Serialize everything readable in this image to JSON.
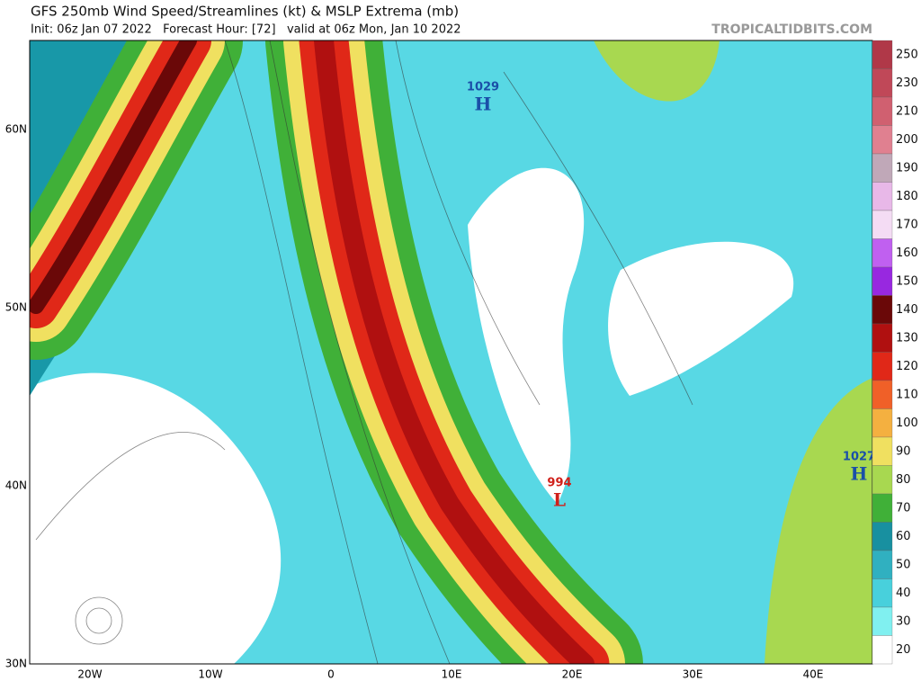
{
  "header": {
    "title": "GFS 250mb Wind Speed/Streamlines (kt) & MSLP Extrema (mb)",
    "subtitle": "Init: 06z Jan 07 2022   Forecast Hour: [72]   valid at 06z Mon, Jan 10 2022",
    "credit": "TROPICALTIDBITS.COM"
  },
  "map": {
    "lat_labels": [
      "60N",
      "50N",
      "40N",
      "30N"
    ],
    "lon_labels": [
      "20W",
      "10W",
      "0",
      "10E",
      "20E",
      "30E",
      "40E"
    ],
    "pressure_centers": [
      {
        "value": "1029",
        "symbol": "H",
        "color": "#1a4fa8"
      },
      {
        "value": "994",
        "symbol": "L",
        "color": "#d0201a"
      },
      {
        "value": "1027",
        "symbol": "H",
        "color": "#1a4fa8"
      }
    ]
  },
  "colorbar": [
    {
      "label": "250",
      "color": "#b03848"
    },
    {
      "label": "230",
      "color": "#c04858"
    },
    {
      "label": "210",
      "color": "#d06070"
    },
    {
      "label": "200",
      "color": "#e08090"
    },
    {
      "label": "190",
      "color": "#c0a8b8"
    },
    {
      "label": "180",
      "color": "#e8b8e8"
    },
    {
      "label": "170",
      "color": "#f4dcf4"
    },
    {
      "label": "160",
      "color": "#c060f0"
    },
    {
      "label": "150",
      "color": "#9828e0"
    },
    {
      "label": "140",
      "color": "#6a0808"
    },
    {
      "label": "130",
      "color": "#b01010"
    },
    {
      "label": "120",
      "color": "#e02818"
    },
    {
      "label": "110",
      "color": "#f06028"
    },
    {
      "label": "100",
      "color": "#f4b040"
    },
    {
      "label": "90",
      "color": "#f0e060"
    },
    {
      "label": "80",
      "color": "#a8d850"
    },
    {
      "label": "70",
      "color": "#40b038"
    },
    {
      "label": "60",
      "color": "#1890a0"
    },
    {
      "label": "50",
      "color": "#30b0c0"
    },
    {
      "label": "40",
      "color": "#48d0dc"
    },
    {
      "label": "30",
      "color": "#80f0f0"
    },
    {
      "label": "20",
      "color": "#ffffff"
    }
  ]
}
